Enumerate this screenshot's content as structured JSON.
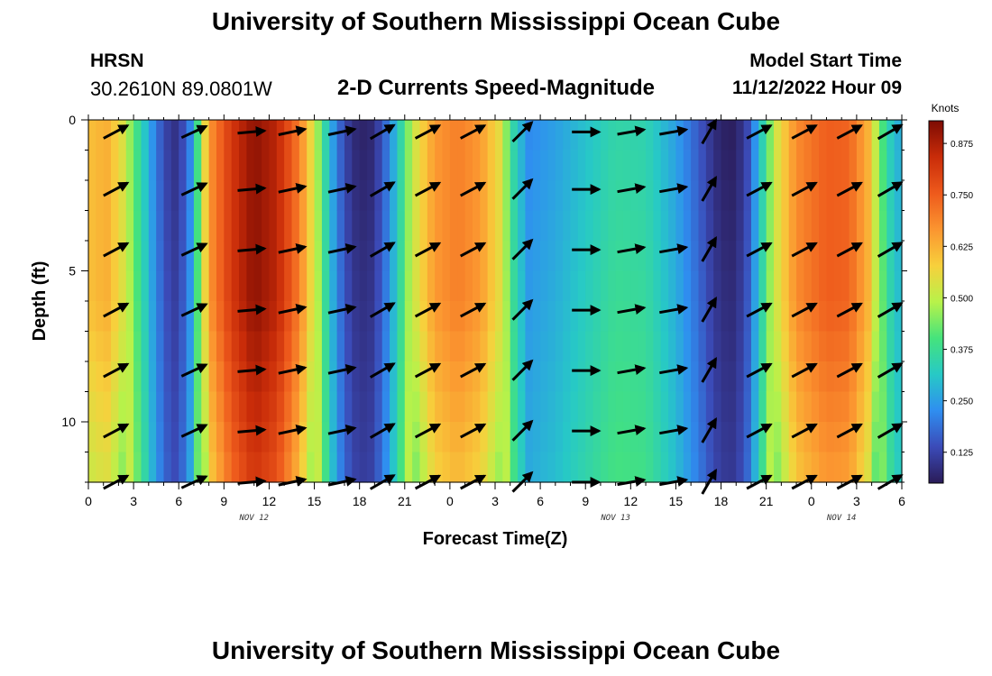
{
  "title": "University of Southern Mississippi Ocean Cube",
  "footer_title": "University of Southern Mississippi Ocean Cube",
  "station": {
    "name": "HRSN",
    "coords": "30.2610N  89.0801W"
  },
  "subtitle": "2-D Currents Speed-Magnitude",
  "model_start": {
    "label": "Model Start Time",
    "value": "11/12/2022 Hour 09"
  },
  "chart_data": {
    "type": "heatmap",
    "xlabel": "Forecast Time(Z)",
    "ylabel": "Depth (ft)",
    "x_ticks": [
      "0",
      "3",
      "6",
      "9",
      "12",
      "15",
      "18",
      "21",
      "0",
      "3",
      "6",
      "9",
      "12",
      "15",
      "18",
      "21",
      "0",
      "3",
      "6"
    ],
    "date_labels": [
      {
        "text": "NOV 12",
        "hour": 11
      },
      {
        "text": "NOV 13",
        "hour": 35
      },
      {
        "text": "NOV 14",
        "hour": 50
      }
    ],
    "xlim": [
      0,
      54
    ],
    "y_ticks": [
      "0",
      "5",
      "10"
    ],
    "ylim": [
      0,
      12
    ],
    "colorbar": {
      "unit": "Knots",
      "ticks": [
        "0.875",
        "0.750",
        "0.625",
        "0.500",
        "0.375",
        "0.250",
        "0.125"
      ],
      "range": [
        0.05,
        0.93
      ],
      "stops": [
        "#2a1b57",
        "#3b4bb8",
        "#2f8ef0",
        "#27c9c6",
        "#45e37c",
        "#b8f24a",
        "#f7d03c",
        "#fb9530",
        "#ee5a1c",
        "#c92c09",
        "#7d0b03"
      ]
    },
    "speed_by_hour": [
      {
        "hour": 0,
        "speed": 0.6
      },
      {
        "hour": 1.2,
        "speed": 0.63
      },
      {
        "hour": 2.2,
        "speed": 0.55
      },
      {
        "hour": 3,
        "speed": 0.42
      },
      {
        "hour": 3.8,
        "speed": 0.3
      },
      {
        "hour": 4.6,
        "speed": 0.18
      },
      {
        "hour": 5.6,
        "speed": 0.08
      },
      {
        "hour": 6.6,
        "speed": 0.16
      },
      {
        "hour": 7.3,
        "speed": 0.4
      },
      {
        "hour": 8,
        "speed": 0.66
      },
      {
        "hour": 9.5,
        "speed": 0.82
      },
      {
        "hour": 11,
        "speed": 0.91
      },
      {
        "hour": 12.5,
        "speed": 0.86
      },
      {
        "hour": 14,
        "speed": 0.7
      },
      {
        "hour": 15,
        "speed": 0.52
      },
      {
        "hour": 15.8,
        "speed": 0.33
      },
      {
        "hour": 16.6,
        "speed": 0.18
      },
      {
        "hour": 17.5,
        "speed": 0.08
      },
      {
        "hour": 18.6,
        "speed": 0.06
      },
      {
        "hour": 19.5,
        "speed": 0.14
      },
      {
        "hour": 20.6,
        "speed": 0.32
      },
      {
        "hour": 21.6,
        "speed": 0.52
      },
      {
        "hour": 23,
        "speed": 0.66
      },
      {
        "hour": 24.5,
        "speed": 0.7
      },
      {
        "hour": 26,
        "speed": 0.66
      },
      {
        "hour": 27.3,
        "speed": 0.55
      },
      {
        "hour": 28.2,
        "speed": 0.35
      },
      {
        "hour": 29.2,
        "speed": 0.22
      },
      {
        "hour": 31,
        "speed": 0.25
      },
      {
        "hour": 33,
        "speed": 0.3
      },
      {
        "hour": 35,
        "speed": 0.35
      },
      {
        "hour": 37,
        "speed": 0.34
      },
      {
        "hour": 39,
        "speed": 0.25
      },
      {
        "hour": 40.6,
        "speed": 0.15
      },
      {
        "hour": 41.6,
        "speed": 0.08
      },
      {
        "hour": 42.6,
        "speed": 0.05
      },
      {
        "hour": 43.6,
        "speed": 0.1
      },
      {
        "hour": 44.6,
        "speed": 0.3
      },
      {
        "hour": 45.6,
        "speed": 0.52
      },
      {
        "hour": 47,
        "speed": 0.68
      },
      {
        "hour": 49,
        "speed": 0.75
      },
      {
        "hour": 50.5,
        "speed": 0.74
      },
      {
        "hour": 51.8,
        "speed": 0.62
      },
      {
        "hour": 52.6,
        "speed": 0.42
      },
      {
        "hour": 53.4,
        "speed": 0.3
      },
      {
        "hour": 54,
        "speed": 0.26
      }
    ],
    "vector_depths_ft": [
      0.4,
      2.3,
      4.3,
      6.3,
      8.3,
      10.3,
      12.0
    ],
    "vector_columns": [
      {
        "hour": 1.8,
        "angle": 28,
        "len": 1
      },
      {
        "hour": 7.0,
        "angle": 25,
        "len": 1
      },
      {
        "hour": 10.8,
        "angle": 5,
        "len": 1
      },
      {
        "hour": 13.5,
        "angle": 12,
        "len": 1
      },
      {
        "hour": 16.8,
        "angle": 12,
        "len": 1
      },
      {
        "hour": 19.5,
        "angle": 30,
        "len": 1
      },
      {
        "hour": 22.5,
        "angle": 28,
        "len": 1
      },
      {
        "hour": 25.5,
        "angle": 28,
        "len": 1
      },
      {
        "hour": 28.8,
        "angle": 45,
        "len": 1
      },
      {
        "hour": 33.0,
        "angle": 0,
        "len": 1
      },
      {
        "hour": 36.0,
        "angle": 10,
        "len": 1
      },
      {
        "hour": 38.8,
        "angle": 10,
        "len": 1
      },
      {
        "hour": 41.2,
        "angle": 60,
        "len": 1
      },
      {
        "hour": 44.5,
        "angle": 28,
        "len": 1
      },
      {
        "hour": 47.5,
        "angle": 28,
        "len": 1
      },
      {
        "hour": 50.5,
        "angle": 28,
        "len": 1
      },
      {
        "hour": 53.2,
        "angle": 30,
        "len": 1
      }
    ]
  }
}
